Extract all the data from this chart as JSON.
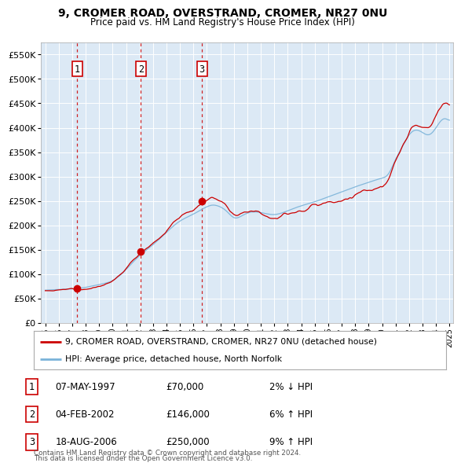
{
  "title1": "9, CROMER ROAD, OVERSTRAND, CROMER, NR27 0NU",
  "title2": "Price paid vs. HM Land Registry's House Price Index (HPI)",
  "background_color": "#dce9f5",
  "sale_dates": [
    1997.37,
    2002.09,
    2006.63
  ],
  "sale_prices": [
    70000,
    146000,
    250000
  ],
  "sale_labels": [
    "1",
    "2",
    "3"
  ],
  "legend_line1": "9, CROMER ROAD, OVERSTRAND, CROMER, NR27 0NU (detached house)",
  "legend_line2": "HPI: Average price, detached house, North Norfolk",
  "table_rows": [
    [
      "1",
      "07-MAY-1997",
      "£70,000",
      "2% ↓ HPI"
    ],
    [
      "2",
      "04-FEB-2002",
      "£146,000",
      "6% ↑ HPI"
    ],
    [
      "3",
      "18-AUG-2006",
      "£250,000",
      "9% ↑ HPI"
    ]
  ],
  "footnote1": "Contains HM Land Registry data © Crown copyright and database right 2024.",
  "footnote2": "This data is licensed under the Open Government Licence v3.0.",
  "hpi_color": "#7ab3d9",
  "price_color": "#cc0000",
  "dashed_color": "#cc0000",
  "ylim": [
    0,
    575000
  ],
  "xlim": [
    1994.7,
    2025.3
  ]
}
